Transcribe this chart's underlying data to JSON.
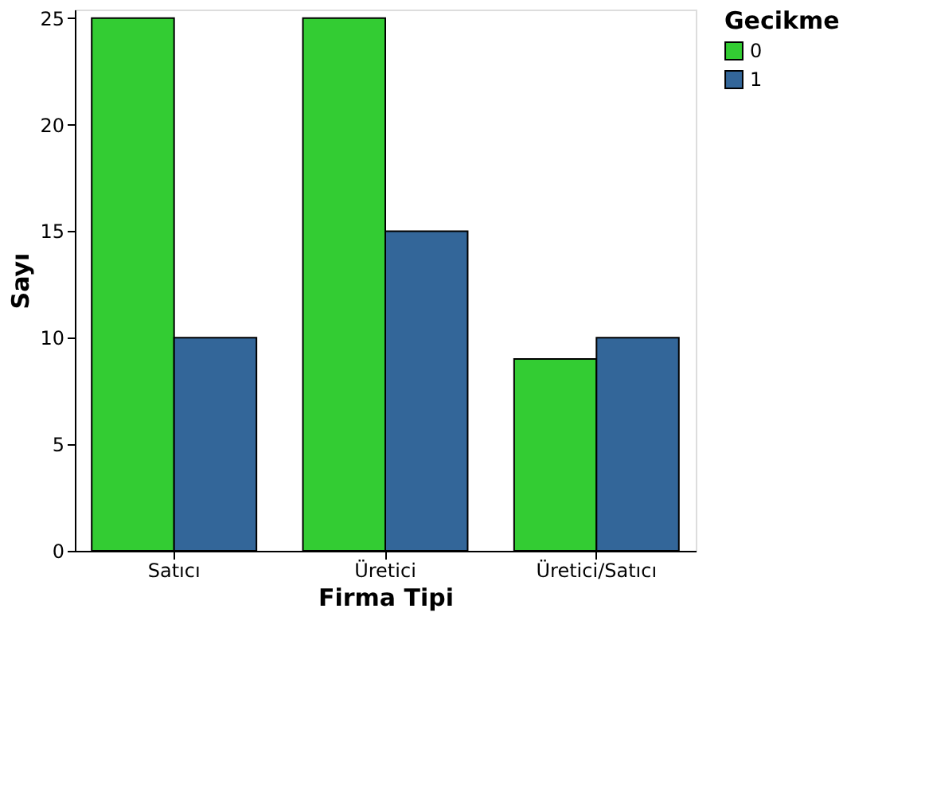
{
  "chart_data": {
    "type": "bar",
    "xlabel": "Firma Tipi",
    "ylabel": "Sayı",
    "legend_title": "Gecikme",
    "legend": "top right",
    "grid": false,
    "categories": [
      "Satıcı",
      "Üretici",
      "Üretici/Satıcı"
    ],
    "series": [
      {
        "name": "0",
        "color": "#33cc33",
        "values": [
          25,
          25,
          9
        ]
      },
      {
        "name": "1",
        "color": "#336699",
        "values": [
          10,
          15,
          10
        ]
      }
    ],
    "ylim": [
      0,
      25.4
    ],
    "yticks": [
      0,
      5,
      10,
      15,
      20,
      25
    ]
  }
}
